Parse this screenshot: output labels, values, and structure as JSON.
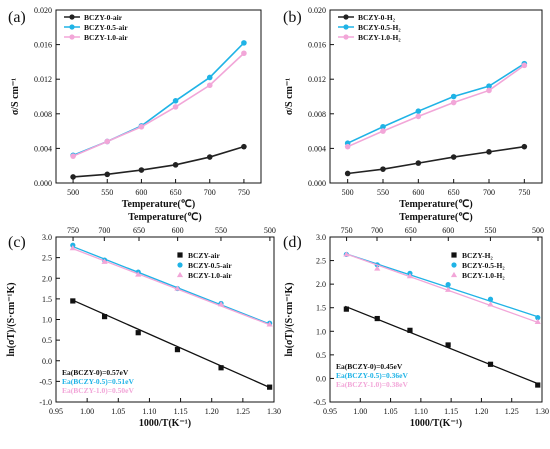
{
  "chart_data": [
    {
      "panel": "(a)",
      "type": "line",
      "x": [
        500,
        550,
        600,
        650,
        700,
        750
      ],
      "xlabel": "Temperature(℃)",
      "ylabel": "σ/S cm⁻¹",
      "xlim": [
        475,
        775
      ],
      "ylim": [
        0,
        0.02
      ],
      "xticks": [
        500,
        550,
        600,
        650,
        700,
        750
      ],
      "yticks": [
        "0.000",
        "0.004",
        "0.008",
        "0.012",
        "0.016",
        "0.020"
      ],
      "legend_position": "top-left",
      "series": [
        {
          "name": "BCZY-0-air",
          "color": "#222222",
          "marker": "circle",
          "values": [
            0.0007,
            0.001,
            0.0015,
            0.0021,
            0.003,
            0.0042
          ]
        },
        {
          "name": "BCZY-0.5-air",
          "color": "#1fb3e6",
          "marker": "circle",
          "values": [
            0.0032,
            0.0048,
            0.0066,
            0.0095,
            0.0122,
            0.0162
          ]
        },
        {
          "name": "BCZY-1.0-air",
          "color": "#f2a6d8",
          "marker": "circle",
          "values": [
            0.0031,
            0.0048,
            0.0065,
            0.0088,
            0.0113,
            0.015
          ]
        }
      ]
    },
    {
      "panel": "(b)",
      "type": "line",
      "x": [
        500,
        550,
        600,
        650,
        700,
        750
      ],
      "xlabel": "Temperature(℃)",
      "ylabel": "σ/S cm⁻¹",
      "xlim": [
        475,
        775
      ],
      "ylim": [
        0,
        0.02
      ],
      "xticks": [
        500,
        550,
        600,
        650,
        700,
        750
      ],
      "yticks": [
        "0.000",
        "0.004",
        "0.008",
        "0.012",
        "0.016",
        "0.020"
      ],
      "legend_position": "top-left",
      "series": [
        {
          "name": "BCZY-0-H₂",
          "color": "#222222",
          "marker": "circle",
          "values": [
            0.0011,
            0.0016,
            0.0023,
            0.003,
            0.0036,
            0.0042
          ]
        },
        {
          "name": "BCZY-0.5-H₂",
          "color": "#1fb3e6",
          "marker": "circle",
          "values": [
            0.0046,
            0.0065,
            0.0083,
            0.01,
            0.0112,
            0.0138
          ]
        },
        {
          "name": "BCZY-1.0-H₂",
          "color": "#f2a6d8",
          "marker": "circle",
          "values": [
            0.0042,
            0.006,
            0.0077,
            0.0093,
            0.0107,
            0.0136
          ]
        }
      ]
    },
    {
      "panel": "(c)",
      "type": "scatter",
      "xlabel": "1000/T(K⁻¹)",
      "ylabel": "ln(σT)/(S·cm⁻¹K)",
      "top_xlabel": "Temperature(℃)",
      "xlim": [
        0.95,
        1.3
      ],
      "ylim": [
        -1.0,
        3.0
      ],
      "xticks": [
        "0.95",
        "1.00",
        "1.05",
        "1.10",
        "1.15",
        "1.20",
        "1.25",
        "1.30"
      ],
      "yticks": [
        "-1.0",
        "-0.5",
        "0.0",
        "0.5",
        "1.0",
        "1.5",
        "2.0",
        "2.5",
        "3.0"
      ],
      "top_ticks": [
        750,
        700,
        650,
        600,
        550,
        500
      ],
      "legend_position": "top-right",
      "series": [
        {
          "name": "BCZY-air",
          "color": "#111111",
          "marker": "square",
          "x": [
            0.977,
            1.028,
            1.082,
            1.145,
            1.215,
            1.293
          ],
          "y": [
            1.45,
            1.07,
            0.68,
            0.27,
            -0.17,
            -0.64
          ],
          "fit": [
            [
              0.975,
              1.48
            ],
            [
              1.295,
              -0.66
            ]
          ]
        },
        {
          "name": "BCZY-0.5-air",
          "color": "#1fb3e6",
          "marker": "circle",
          "x": [
            0.977,
            1.028,
            1.082,
            1.145,
            1.215,
            1.293
          ],
          "y": [
            2.8,
            2.44,
            2.15,
            1.75,
            1.39,
            0.91
          ],
          "fit": [
            [
              0.975,
              2.78
            ],
            [
              1.295,
              0.88
            ]
          ]
        },
        {
          "name": "BCZY-1.0-air",
          "color": "#f2a6d8",
          "marker": "triangle",
          "x": [
            0.977,
            1.028,
            1.082,
            1.145,
            1.215,
            1.293
          ],
          "y": [
            2.73,
            2.4,
            2.09,
            1.75,
            1.37,
            0.88
          ],
          "fit": [
            [
              0.975,
              2.73
            ],
            [
              1.295,
              0.86
            ]
          ]
        }
      ],
      "annotations": [
        {
          "text": "Ea(BCZY-0)=0.57eV",
          "color": "#111111"
        },
        {
          "text": "Ea(BCZY-0.5)=0.51eV",
          "color": "#1fb3e6"
        },
        {
          "text": "Ea(BCZY-1.0)=0.50eV",
          "color": "#f2a6d8"
        }
      ]
    },
    {
      "panel": "(d)",
      "type": "scatter",
      "xlabel": "1000/T(K⁻¹)",
      "ylabel": "ln(σT)/(S·cm⁻¹K)",
      "top_xlabel": "Temperature(℃)",
      "xlim": [
        0.95,
        1.3
      ],
      "ylim": [
        -0.5,
        3.0
      ],
      "xticks": [
        "0.95",
        "1.00",
        "1.05",
        "1.10",
        "1.15",
        "1.20",
        "1.25",
        "1.30"
      ],
      "yticks": [
        "-0.5",
        "0.0",
        "0.5",
        "1.0",
        "1.5",
        "2.0",
        "2.5",
        "3.0"
      ],
      "top_ticks": [
        750,
        700,
        650,
        600,
        550,
        500
      ],
      "legend_position": "top-right",
      "series": [
        {
          "name": "BCZY-H₂",
          "color": "#111111",
          "marker": "square",
          "x": [
            0.977,
            1.028,
            1.082,
            1.145,
            1.215,
            1.293
          ],
          "y": [
            1.47,
            1.27,
            1.02,
            0.71,
            0.3,
            -0.14
          ],
          "fit": [
            [
              0.975,
              1.53
            ],
            [
              1.295,
              -0.12
            ]
          ]
        },
        {
          "name": "BCZY-0.5-H₂",
          "color": "#1fb3e6",
          "marker": "circle",
          "x": [
            0.977,
            1.028,
            1.082,
            1.145,
            1.215,
            1.293
          ],
          "y": [
            2.63,
            2.41,
            2.23,
            1.99,
            1.68,
            1.29
          ],
          "fit": [
            [
              0.975,
              2.65
            ],
            [
              1.295,
              1.3
            ]
          ]
        },
        {
          "name": "BCZY-1.0-H₂",
          "color": "#f2a6d8",
          "marker": "triangle",
          "x": [
            0.977,
            1.028,
            1.082,
            1.145,
            1.215,
            1.293
          ],
          "y": [
            2.63,
            2.33,
            2.17,
            1.88,
            1.57,
            1.2
          ],
          "fit": [
            [
              0.975,
              2.65
            ],
            [
              1.295,
              1.18
            ]
          ]
        }
      ],
      "annotations": [
        {
          "text": "Ea(BCZY-0)=0.45eV",
          "color": "#111111"
        },
        {
          "text": "Ea(BCZY-0.5)=0.36eV",
          "color": "#1fb3e6"
        },
        {
          "text": "Ea(BCZY-1.0)=0.38eV",
          "color": "#f2a6d8"
        }
      ]
    }
  ]
}
